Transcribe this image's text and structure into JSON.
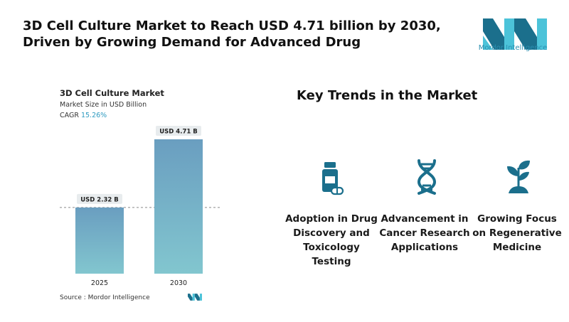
{
  "headline": "3D Cell Culture Market to Reach USD 4.71 billion by 2030, Driven by Growing Demand for Advanced Drug",
  "brand": {
    "name": "Mordor Intelligence",
    "colors": {
      "dark": "#1b6f8c",
      "light": "#4cc3d9"
    }
  },
  "chart_data": {
    "type": "bar",
    "title": "3D Cell Culture Market",
    "subtitle": "Market Size in USD Billion",
    "cagr_label": "CAGR",
    "cagr_value": "15.26%",
    "categories": [
      "2025",
      "2030"
    ],
    "values": [
      2.32,
      4.71
    ],
    "value_labels": [
      "USD 2.32 B",
      "USD 4.71 B"
    ],
    "ylim": [
      0,
      4.71
    ],
    "colors": {
      "bar_top": "#6a9ec0",
      "bar_bottom": "#82c6cf"
    }
  },
  "source": "Source : Mordor Intelligence",
  "trends": {
    "title": "Key Trends in the Market",
    "items": [
      {
        "label": "Adoption in Drug Discovery and Toxicology Testing",
        "icon": "medicine-bottle-icon"
      },
      {
        "label": "Advancement in Cancer Research Applications",
        "icon": "dna-icon"
      },
      {
        "label": "Growing Focus on Regenerative Medicine",
        "icon": "plant-sprout-icon"
      }
    ],
    "icon_color": "#1b6f8c"
  }
}
